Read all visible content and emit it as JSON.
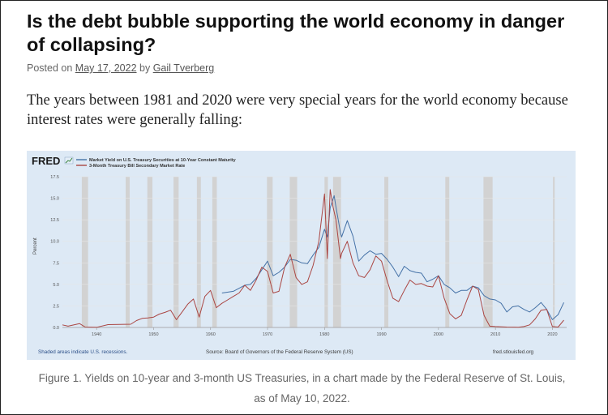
{
  "article": {
    "title": "Is the debt bubble supporting the world economy in danger of collapsing?",
    "posted_prefix": "Posted on",
    "date": "May 17, 2022",
    "by_prefix": "by",
    "author": "Gail Tverberg",
    "intro": "The years between 1981 and 2020 were very special years for the world economy because interest rates were generally falling:",
    "caption": "Figure 1. Yields on 10-year and 3-month US Treasuries, in a chart made by the Federal Reserve of St. Louis, as of May 10, 2022."
  },
  "chart_data": {
    "type": "line",
    "brand": "FRED",
    "ylabel": "Percent",
    "ylim": [
      0,
      17.5
    ],
    "yticks": [
      "0.0",
      "2.5",
      "5.0",
      "7.5",
      "10.0",
      "12.5",
      "15.0",
      "17.5"
    ],
    "xlim": [
      1934,
      2022.5
    ],
    "xticks": [
      "1940",
      "1950",
      "1960",
      "1970",
      "1980",
      "1990",
      "2000",
      "2010",
      "2020"
    ],
    "recessions": [
      [
        1937.4,
        1938.5
      ],
      [
        1945.1,
        1945.8
      ],
      [
        1948.9,
        1949.8
      ],
      [
        1953.5,
        1954.4
      ],
      [
        1957.6,
        1958.3
      ],
      [
        1960.3,
        1961.1
      ],
      [
        1969.9,
        1970.9
      ],
      [
        1973.9,
        1975.2
      ],
      [
        1980.0,
        1980.6
      ],
      [
        1981.5,
        1982.9
      ],
      [
        1990.5,
        1991.2
      ],
      [
        2001.2,
        2001.9
      ],
      [
        2007.9,
        2009.5
      ],
      [
        2020.1,
        2020.4
      ]
    ],
    "legend_position": "top-left",
    "series": [
      {
        "name": "Market Yield on U.S. Treasury Securities at 10-Year Constant Maturity",
        "color": "#4572a7",
        "points": [
          [
            1962,
            4.0
          ],
          [
            1964,
            4.2
          ],
          [
            1966,
            4.9
          ],
          [
            1967,
            5.0
          ],
          [
            1968,
            5.7
          ],
          [
            1969,
            6.7
          ],
          [
            1970,
            7.7
          ],
          [
            1971,
            6.0
          ],
          [
            1972,
            6.4
          ],
          [
            1973,
            7.0
          ],
          [
            1974,
            7.9
          ],
          [
            1975,
            7.8
          ],
          [
            1976,
            7.5
          ],
          [
            1977,
            7.4
          ],
          [
            1978,
            8.4
          ],
          [
            1979,
            9.3
          ],
          [
            1980,
            11.4
          ],
          [
            1980.5,
            10.5
          ],
          [
            1981,
            13.9
          ],
          [
            1981.7,
            15.3
          ],
          [
            1982,
            14.0
          ],
          [
            1982.8,
            11.0
          ],
          [
            1983,
            10.5
          ],
          [
            1984,
            12.4
          ],
          [
            1985,
            10.6
          ],
          [
            1986,
            7.7
          ],
          [
            1987,
            8.4
          ],
          [
            1988,
            8.9
          ],
          [
            1989,
            8.5
          ],
          [
            1990,
            8.6
          ],
          [
            1991,
            7.9
          ],
          [
            1992,
            7.0
          ],
          [
            1993,
            5.9
          ],
          [
            1994,
            7.1
          ],
          [
            1995,
            6.6
          ],
          [
            1996,
            6.4
          ],
          [
            1997,
            6.3
          ],
          [
            1998,
            5.3
          ],
          [
            1999,
            5.6
          ],
          [
            2000,
            6.0
          ],
          [
            2001,
            5.0
          ],
          [
            2002,
            4.6
          ],
          [
            2003,
            4.0
          ],
          [
            2004,
            4.3
          ],
          [
            2005,
            4.3
          ],
          [
            2006,
            4.8
          ],
          [
            2007,
            4.6
          ],
          [
            2008,
            3.7
          ],
          [
            2009,
            3.3
          ],
          [
            2010,
            3.2
          ],
          [
            2011,
            2.8
          ],
          [
            2012,
            1.8
          ],
          [
            2013,
            2.4
          ],
          [
            2014,
            2.5
          ],
          [
            2015,
            2.1
          ],
          [
            2016,
            1.8
          ],
          [
            2017,
            2.3
          ],
          [
            2018,
            2.9
          ],
          [
            2019,
            2.1
          ],
          [
            2020,
            0.9
          ],
          [
            2021,
            1.5
          ],
          [
            2022,
            2.9
          ]
        ]
      },
      {
        "name": "3-Month Treasury Bill Secondary Market Rate",
        "color": "#aa4643",
        "points": [
          [
            1934,
            0.3
          ],
          [
            1935,
            0.15
          ],
          [
            1937,
            0.45
          ],
          [
            1938,
            0.05
          ],
          [
            1940,
            0.02
          ],
          [
            1942,
            0.33
          ],
          [
            1946,
            0.38
          ],
          [
            1947,
            0.8
          ],
          [
            1948,
            1.05
          ],
          [
            1949,
            1.1
          ],
          [
            1950,
            1.2
          ],
          [
            1951,
            1.55
          ],
          [
            1952,
            1.75
          ],
          [
            1953,
            2.0
          ],
          [
            1954,
            0.9
          ],
          [
            1955,
            1.8
          ],
          [
            1956,
            2.7
          ],
          [
            1957,
            3.3
          ],
          [
            1958,
            1.2
          ],
          [
            1959,
            3.6
          ],
          [
            1960,
            4.3
          ],
          [
            1961,
            2.3
          ],
          [
            1962,
            2.8
          ],
          [
            1963,
            3.2
          ],
          [
            1964,
            3.6
          ],
          [
            1965,
            4.0
          ],
          [
            1966,
            4.9
          ],
          [
            1967,
            4.3
          ],
          [
            1968,
            5.5
          ],
          [
            1969,
            7.0
          ],
          [
            1970,
            6.5
          ],
          [
            1971,
            4.0
          ],
          [
            1972,
            4.2
          ],
          [
            1973,
            7.0
          ],
          [
            1974,
            8.5
          ],
          [
            1975,
            5.8
          ],
          [
            1976,
            5.0
          ],
          [
            1977,
            5.3
          ],
          [
            1978,
            7.2
          ],
          [
            1979,
            10.0
          ],
          [
            1980,
            15.5
          ],
          [
            1980.5,
            8.0
          ],
          [
            1981,
            16.0
          ],
          [
            1981.5,
            14.0
          ],
          [
            1982,
            12.5
          ],
          [
            1982.8,
            8.0
          ],
          [
            1983,
            8.6
          ],
          [
            1984,
            10.0
          ],
          [
            1985,
            7.5
          ],
          [
            1986,
            6.0
          ],
          [
            1987,
            5.8
          ],
          [
            1988,
            6.7
          ],
          [
            1989,
            8.3
          ],
          [
            1990,
            7.7
          ],
          [
            1991,
            5.4
          ],
          [
            1992,
            3.4
          ],
          [
            1993,
            3.0
          ],
          [
            1994,
            4.3
          ],
          [
            1995,
            5.5
          ],
          [
            1996,
            5.0
          ],
          [
            1997,
            5.1
          ],
          [
            1998,
            4.8
          ],
          [
            1999,
            4.7
          ],
          [
            2000,
            6.0
          ],
          [
            2001,
            3.4
          ],
          [
            2002,
            1.6
          ],
          [
            2003,
            1.0
          ],
          [
            2004,
            1.4
          ],
          [
            2005,
            3.2
          ],
          [
            2006,
            4.8
          ],
          [
            2007,
            4.4
          ],
          [
            2008,
            1.4
          ],
          [
            2009,
            0.15
          ],
          [
            2010,
            0.1
          ],
          [
            2012,
            0.05
          ],
          [
            2014,
            0.03
          ],
          [
            2015,
            0.1
          ],
          [
            2016,
            0.3
          ],
          [
            2017,
            1.0
          ],
          [
            2018,
            2.0
          ],
          [
            2019,
            2.1
          ],
          [
            2020,
            0.1
          ],
          [
            2021,
            0.05
          ],
          [
            2022,
            0.85
          ]
        ]
      }
    ],
    "footer": {
      "left": "Shaded areas indicate U.S. recessions.",
      "center": "Source: Board of Governors of the Federal Reserve System (US)",
      "right": "fred.stlouisfed.org"
    }
  }
}
